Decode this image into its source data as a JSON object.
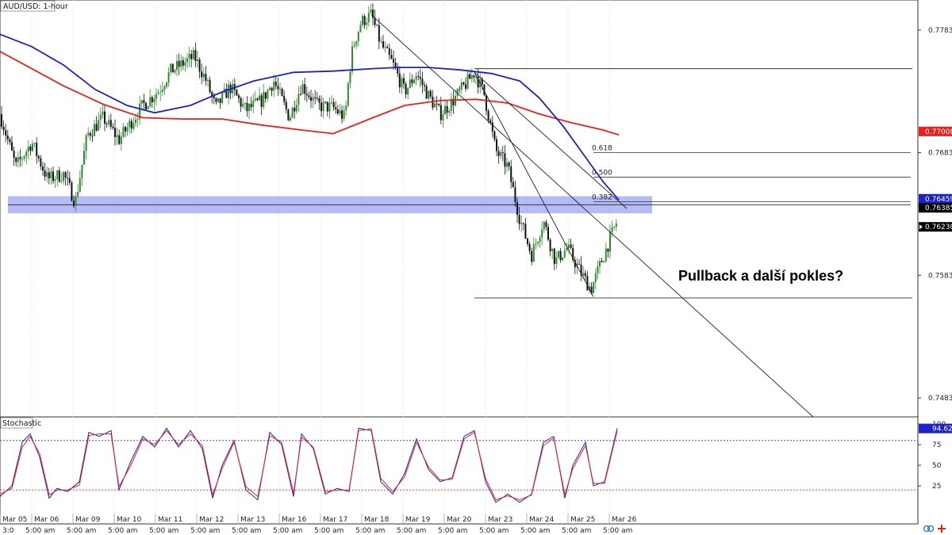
{
  "chart_data": [
    {
      "type": "candlestick",
      "title": "AUD/USD: 1-hour",
      "annotation": "Pullback a další pokles?",
      "price_range": [
        0.7468,
        0.7808
      ],
      "y_ticks": [
        {
          "value": 0.77835,
          "label": "0.77835"
        },
        {
          "value": 0.76835,
          "label": "0.76835"
        },
        {
          "value": 0.75835,
          "label": "0.75835"
        },
        {
          "value": 0.74835,
          "label": "0.74835"
        }
      ],
      "price_badges": [
        {
          "value": 0.77008,
          "label": "0.77008",
          "color": "#e8211b"
        },
        {
          "value": 0.76459,
          "label": "0.76459",
          "color": "#1c22c6"
        },
        {
          "value": 0.76385,
          "label": "0.76385",
          "color": "#000000"
        },
        {
          "value": 0.7623,
          "label": "0.76230",
          "color": "#000000"
        }
      ],
      "x_dates": [
        "Mar 05",
        "Mar 06",
        "Mar 09",
        "Mar 10",
        "Mar 11",
        "Mar 12",
        "Mar 13",
        "Mar 16",
        "Mar 17",
        "Mar 18",
        "Mar 19",
        "Mar 20",
        "Mar 23",
        "Mar 24",
        "Mar 25",
        "Mar 26"
      ],
      "x_times": [
        "3:0",
        "5:00 am",
        "5:00 am",
        "5:00 am",
        "5:00 am",
        "5:00 am",
        "5:00 am",
        "5:00 am",
        "5:00 am",
        "5:00 am",
        "5:00 am",
        "5:00 am",
        "5:00 am",
        "5:00 am",
        "5:00 am",
        "5:00 am"
      ],
      "candle_colors": {
        "up": "#2e8b2e",
        "down": "#111111"
      },
      "support_zone": [
        0.7634,
        0.7648
      ],
      "support_zone_color": "#8c96f0",
      "fibonacci": [
        {
          "label": "0.618",
          "value": 0.76835
        },
        {
          "label": "0.500",
          "value": 0.76635
        },
        {
          "label": "0.382",
          "value": 0.76435
        }
      ],
      "horizontal_lines": [
        0.7752,
        0.7565
      ],
      "moving_averages": [
        {
          "color": "#e8211b",
          "points": [
            [
              0,
              0.7766
            ],
            [
              40,
              0.7752
            ],
            [
              80,
              0.7738
            ],
            [
              130,
              0.7723
            ],
            [
              180,
              0.7712
            ],
            [
              230,
              0.7711
            ],
            [
              280,
              0.7711
            ],
            [
              330,
              0.7706
            ],
            [
              380,
              0.7702
            ],
            [
              420,
              0.7699
            ],
            [
              470,
              0.7712
            ],
            [
              510,
              0.7722
            ],
            [
              555,
              0.7726
            ],
            [
              600,
              0.7727
            ],
            [
              640,
              0.7724
            ],
            [
              680,
              0.7715
            ],
            [
              720,
              0.7708
            ],
            [
              760,
              0.7702
            ],
            [
              780,
              0.7698
            ]
          ]
        },
        {
          "color": "#1c22c6",
          "points": [
            [
              0,
              0.778
            ],
            [
              40,
              0.777
            ],
            [
              80,
              0.7755
            ],
            [
              120,
              0.7735
            ],
            [
              160,
              0.7722
            ],
            [
              195,
              0.7716
            ],
            [
              240,
              0.7722
            ],
            [
              280,
              0.7733
            ],
            [
              320,
              0.7742
            ],
            [
              370,
              0.7749
            ],
            [
              420,
              0.775
            ],
            [
              470,
              0.7752
            ],
            [
              500,
              0.7753
            ],
            [
              540,
              0.7753
            ],
            [
              580,
              0.7751
            ],
            [
              620,
              0.7748
            ],
            [
              655,
              0.7742
            ],
            [
              680,
              0.7728
            ],
            [
              710,
              0.7705
            ],
            [
              740,
              0.7678
            ],
            [
              760,
              0.766
            ],
            [
              780,
              0.7645
            ]
          ]
        }
      ],
      "price_path": [
        [
          0,
          0.7715
        ],
        [
          20,
          0.7672
        ],
        [
          40,
          0.7692
        ],
        [
          60,
          0.7662
        ],
        [
          80,
          0.7666
        ],
        [
          95,
          0.7643
        ],
        [
          110,
          0.7698
        ],
        [
          130,
          0.7712
        ],
        [
          150,
          0.7694
        ],
        [
          165,
          0.7708
        ],
        [
          180,
          0.7722
        ],
        [
          200,
          0.7734
        ],
        [
          215,
          0.775
        ],
        [
          245,
          0.7762
        ],
        [
          260,
          0.7742
        ],
        [
          272,
          0.772
        ],
        [
          290,
          0.7737
        ],
        [
          310,
          0.7718
        ],
        [
          330,
          0.7726
        ],
        [
          345,
          0.7742
        ],
        [
          365,
          0.7712
        ],
        [
          380,
          0.7739
        ],
        [
          400,
          0.7722
        ],
        [
          420,
          0.772
        ],
        [
          435,
          0.7712
        ],
        [
          440,
          0.7748
        ],
        [
          445,
          0.777
        ],
        [
          455,
          0.779
        ],
        [
          468,
          0.7796
        ],
        [
          480,
          0.7772
        ],
        [
          495,
          0.7756
        ],
        [
          510,
          0.7733
        ],
        [
          525,
          0.7748
        ],
        [
          540,
          0.773
        ],
        [
          555,
          0.7715
        ],
        [
          570,
          0.7725
        ],
        [
          590,
          0.7742
        ],
        [
          598,
          0.7749
        ],
        [
          610,
          0.7732
        ],
        [
          625,
          0.7685
        ],
        [
          640,
          0.7672
        ],
        [
          655,
          0.763
        ],
        [
          670,
          0.76
        ],
        [
          685,
          0.7628
        ],
        [
          700,
          0.7595
        ],
        [
          715,
          0.7606
        ],
        [
          730,
          0.7588
        ],
        [
          745,
          0.7572
        ],
        [
          760,
          0.7598
        ],
        [
          778,
          0.7628
        ]
      ],
      "trendlines": [
        {
          "from": [
            468,
            0.7796
          ],
          "to": [
            1025,
            0.7468
          ]
        },
        {
          "from": [
            598,
            0.7749
          ],
          "to": [
            790,
            0.7638
          ]
        },
        {
          "from": [
            598,
            0.7749
          ],
          "to": [
            748,
            0.7566
          ]
        }
      ]
    },
    {
      "type": "line",
      "title": "Stochastic",
      "ylim": [
        0,
        100
      ],
      "y_ticks": [
        {
          "value": 100,
          "label": "100"
        },
        {
          "value": 75,
          "label": "75"
        },
        {
          "value": 50,
          "label": "50"
        },
        {
          "value": 25,
          "label": "25"
        }
      ],
      "levels": [
        {
          "value": 80,
          "color": "#2a2ad0"
        },
        {
          "value": 20,
          "color": "#e8211b"
        }
      ],
      "current": {
        "value": 94.62,
        "label": "94.62",
        "color": "#1c22c6"
      },
      "series": [
        {
          "color": "#1c22c6",
          "points": [
            [
              0,
              12
            ],
            [
              15,
              25
            ],
            [
              28,
              78
            ],
            [
              38,
              88
            ],
            [
              50,
              60
            ],
            [
              62,
              10
            ],
            [
              72,
              22
            ],
            [
              85,
              18
            ],
            [
              100,
              30
            ],
            [
              112,
              90
            ],
            [
              125,
              85
            ],
            [
              140,
              92
            ],
            [
              150,
              20
            ],
            [
              165,
              55
            ],
            [
              180,
              85
            ],
            [
              195,
              72
            ],
            [
              210,
              95
            ],
            [
              225,
              72
            ],
            [
              240,
              92
            ],
            [
              255,
              70
            ],
            [
              268,
              10
            ],
            [
              280,
              50
            ],
            [
              295,
              80
            ],
            [
              310,
              20
            ],
            [
              325,
              8
            ],
            [
              340,
              90
            ],
            [
              355,
              75
            ],
            [
              370,
              12
            ],
            [
              380,
              88
            ],
            [
              395,
              70
            ],
            [
              410,
              15
            ],
            [
              425,
              22
            ],
            [
              440,
              18
            ],
            [
              452,
              95
            ],
            [
              468,
              92
            ],
            [
              480,
              30
            ],
            [
              495,
              15
            ],
            [
              510,
              40
            ],
            [
              525,
              82
            ],
            [
              540,
              45
            ],
            [
              555,
              30
            ],
            [
              570,
              35
            ],
            [
              585,
              85
            ],
            [
              598,
              92
            ],
            [
              612,
              30
            ],
            [
              625,
              5
            ],
            [
              640,
              15
            ],
            [
              655,
              5
            ],
            [
              670,
              15
            ],
            [
              685,
              78
            ],
            [
              698,
              85
            ],
            [
              712,
              10
            ],
            [
              722,
              50
            ],
            [
              738,
              78
            ],
            [
              748,
              25
            ],
            [
              762,
              30
            ],
            [
              778,
              95
            ]
          ]
        },
        {
          "color": "#e8211b",
          "points": [
            [
              0,
              15
            ],
            [
              15,
              22
            ],
            [
              28,
              72
            ],
            [
              38,
              85
            ],
            [
              50,
              64
            ],
            [
              62,
              14
            ],
            [
              72,
              20
            ],
            [
              85,
              20
            ],
            [
              100,
              26
            ],
            [
              112,
              86
            ],
            [
              125,
              88
            ],
            [
              140,
              88
            ],
            [
              150,
              24
            ],
            [
              165,
              50
            ],
            [
              180,
              82
            ],
            [
              195,
              75
            ],
            [
              210,
              92
            ],
            [
              225,
              75
            ],
            [
              240,
              88
            ],
            [
              255,
              74
            ],
            [
              268,
              14
            ],
            [
              280,
              46
            ],
            [
              295,
              78
            ],
            [
              310,
              24
            ],
            [
              325,
              12
            ],
            [
              340,
              86
            ],
            [
              355,
              78
            ],
            [
              370,
              16
            ],
            [
              380,
              84
            ],
            [
              395,
              72
            ],
            [
              410,
              18
            ],
            [
              425,
              20
            ],
            [
              440,
              20
            ],
            [
              452,
              92
            ],
            [
              468,
              94
            ],
            [
              480,
              34
            ],
            [
              495,
              18
            ],
            [
              510,
              36
            ],
            [
              525,
              78
            ],
            [
              540,
              48
            ],
            [
              555,
              32
            ],
            [
              570,
              33
            ],
            [
              585,
              82
            ],
            [
              598,
              90
            ],
            [
              612,
              34
            ],
            [
              625,
              8
            ],
            [
              640,
              13
            ],
            [
              655,
              8
            ],
            [
              670,
              14
            ],
            [
              685,
              74
            ],
            [
              698,
              83
            ],
            [
              712,
              14
            ],
            [
              722,
              46
            ],
            [
              738,
              74
            ],
            [
              748,
              28
            ],
            [
              762,
              28
            ],
            [
              778,
              92
            ]
          ]
        }
      ]
    }
  ]
}
